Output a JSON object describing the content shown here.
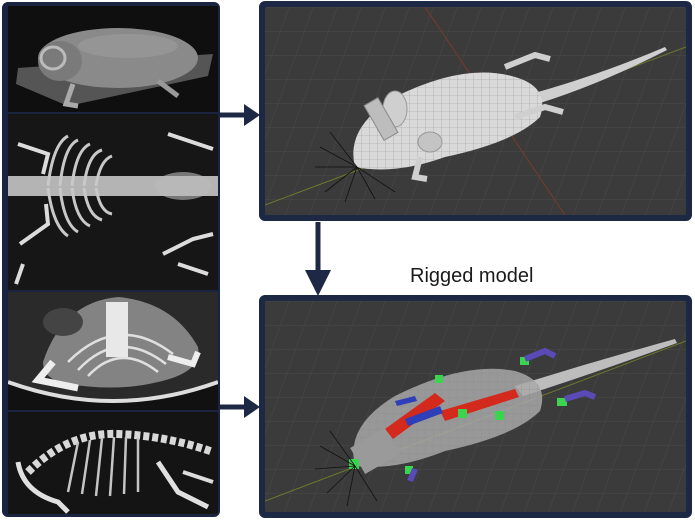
{
  "labels": {
    "rigged_model": "Rigged model"
  },
  "colors": {
    "frame": "#1d2845",
    "arrow": "#1d2845",
    "viewport_bg": "#3b3b3b",
    "mesh": "#d8d8d8",
    "bone_red": "#d42a1e",
    "bone_blue": "#2f3fb8",
    "handle_green": "#3bd44e",
    "handle_purple": "#5a4ab8"
  },
  "panels": {
    "scans": [
      "ct-surface-render",
      "ct-skeleton-dorsal",
      "ct-skeleton-axial",
      "ct-skeleton-lateral"
    ],
    "viewports": [
      "mesh-model-viewport",
      "rigged-model-viewport"
    ]
  }
}
